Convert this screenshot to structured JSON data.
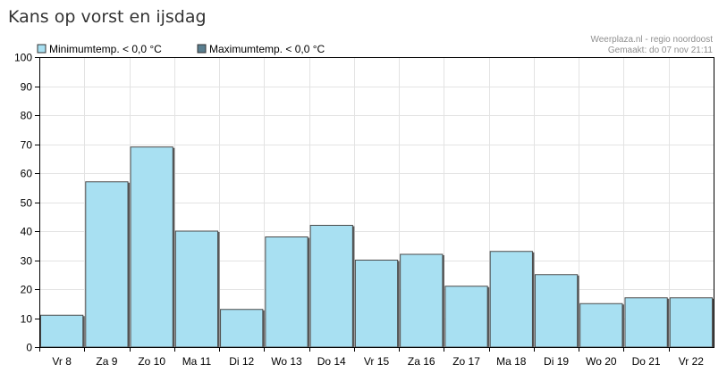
{
  "page": {
    "title": "Kans op vorst en ijsdag"
  },
  "source": {
    "line1": "Weerplaza.nl - regio noordoost",
    "line2": "Gemaakt: do 07 nov 21:11"
  },
  "legend": [
    {
      "label": "Minimumtemp. < 0,0 °C",
      "color": "#a8e0f2"
    },
    {
      "label": "Maximumtemp. < 0,0 °C",
      "color": "#5a7f90"
    }
  ],
  "chart_data": {
    "type": "bar",
    "categories": [
      "Vr 8",
      "Za 9",
      "Zo 10",
      "Ma 11",
      "Di 12",
      "Wo 13",
      "Do 14",
      "Vr 15",
      "Za 16",
      "Zo 17",
      "Ma 18",
      "Di 19",
      "Wo 20",
      "Do 21",
      "Vr 22"
    ],
    "series": [
      {
        "name": "Minimumtemp. < 0,0 °C",
        "values": [
          11,
          57,
          69,
          40,
          13,
          38,
          42,
          30,
          32,
          21,
          33,
          25,
          15,
          17,
          17
        ],
        "color": "#a8e0f2"
      },
      {
        "name": "Maximumtemp. < 0,0 °C",
        "values": [
          0,
          0,
          0,
          0,
          0,
          0,
          0,
          0,
          0,
          0,
          0,
          0,
          0,
          0,
          0
        ],
        "color": "#5a7f90"
      }
    ],
    "yticks": [
      0,
      10,
      20,
      30,
      40,
      50,
      60,
      70,
      80,
      90,
      100
    ],
    "ylim": [
      0,
      100
    ],
    "grid": true,
    "legend_position": "top-left"
  }
}
